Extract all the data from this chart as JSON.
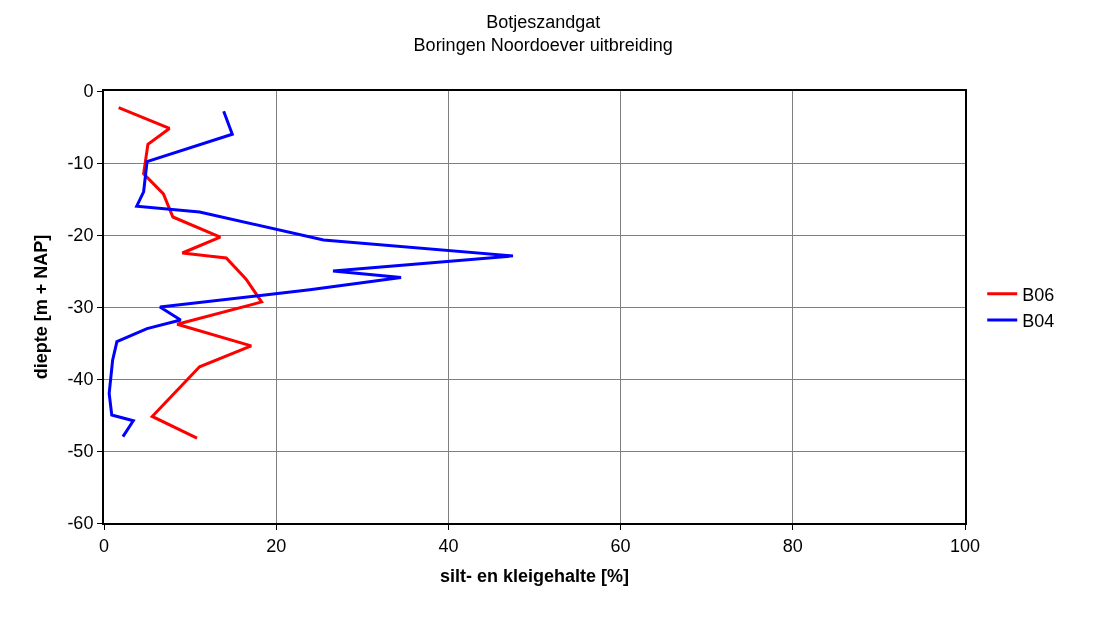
{
  "chart_data": {
    "type": "line",
    "title": "Botjeszandgat",
    "subtitle": "Boringen Noordoever uitbreiding",
    "xlabel": "silt- en kleigehalte [%]",
    "ylabel": "diepte [m + NAP]",
    "xlim": [
      0,
      100
    ],
    "xticks": [
      0,
      20,
      40,
      60,
      80,
      100
    ],
    "ylim": [
      -60,
      0
    ],
    "yticks": [
      -60,
      -50,
      -40,
      -30,
      -20,
      -10,
      0
    ],
    "grid": true,
    "legend": "right",
    "marker": "none",
    "line_style": "solid",
    "series": [
      {
        "name": "B06",
        "color": "#ff0000",
        "x": [
          1.7,
          7.6,
          5.1,
          4.6,
          5.1,
          6.9,
          8.0,
          13.5,
          9.1,
          14.2,
          16.4,
          16.6,
          18.3,
          8.5,
          17.1,
          11.1,
          5.6,
          10.8
        ],
        "values": [
          -2.3,
          -5.2,
          -7.4,
          -11.5,
          -12.1,
          -14.3,
          -17.5,
          -20.3,
          -22.5,
          -23.2,
          -26.0,
          -26.3,
          -29.3,
          -32.4,
          -35.4,
          -38.3,
          -45.2,
          -48.2
        ]
      },
      {
        "name": "B04",
        "color": "#0000ff",
        "x": [
          13.9,
          14.9,
          5.0,
          4.6,
          3.8,
          11.1,
          25.5,
          47.5,
          26.6,
          34.5,
          23.9,
          6.5,
          8.9,
          5.0,
          1.5,
          1.0,
          0.6,
          0.9,
          3.4,
          2.2
        ],
        "values": [
          -2.8,
          -6.0,
          -9.8,
          -14.0,
          -16.0,
          -16.8,
          -20.7,
          -22.9,
          -25.0,
          -25.9,
          -27.6,
          -30.0,
          -31.8,
          -33.0,
          -34.8,
          -37.4,
          -42.0,
          -45.0,
          -45.8,
          -48.0
        ]
      }
    ]
  }
}
